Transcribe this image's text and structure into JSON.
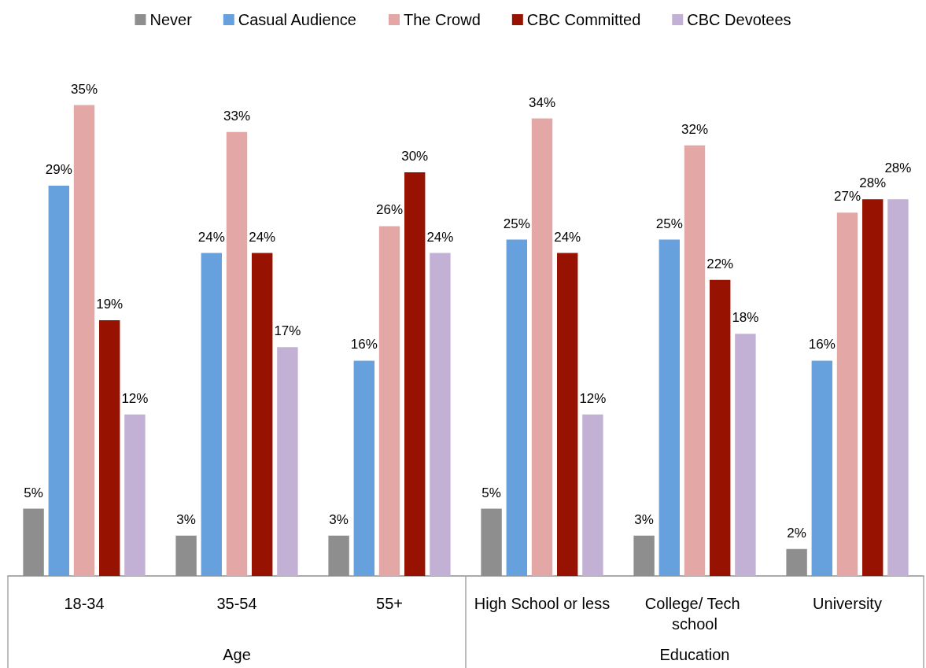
{
  "chart_data": {
    "type": "bar",
    "categories": [
      "18-34",
      "35-54",
      "55+",
      "High School or less",
      "College/ Tech school",
      "University"
    ],
    "series": [
      {
        "name": "Never",
        "color": "#8e8e8e",
        "values": [
          5,
          3,
          3,
          5,
          3,
          2
        ],
        "value_labels": [
          "5%",
          "3%",
          "3%",
          "5%",
          "3%",
          "2%"
        ]
      },
      {
        "name": "Casual Audience",
        "color": "#66a1dd",
        "values": [
          29,
          24,
          16,
          25,
          25,
          16
        ],
        "value_labels": [
          "29%",
          "24%",
          "16%",
          "25%",
          "25%",
          "16%"
        ]
      },
      {
        "name": "The Crowd",
        "color": "#e3a8a6",
        "values": [
          35,
          33,
          26,
          34,
          32,
          27
        ],
        "value_labels": [
          "35%",
          "33%",
          "26%",
          "34%",
          "32%",
          "27%"
        ]
      },
      {
        "name": "CBC Committed",
        "color": "#971200",
        "values": [
          19,
          24,
          30,
          24,
          22,
          28
        ],
        "value_labels": [
          "19%",
          "24%",
          "30%",
          "24%",
          "22%",
          "28%"
        ]
      },
      {
        "name": "CBC Devotees",
        "color": "#c2b1d4",
        "values": [
          12,
          17,
          24,
          12,
          18,
          28
        ],
        "value_labels": [
          "12%",
          "17%",
          "24%",
          "12%",
          "18%",
          "28%"
        ]
      }
    ],
    "annotations": [
      "Age",
      "Education"
    ],
    "legend": "top",
    "grid": false
  }
}
